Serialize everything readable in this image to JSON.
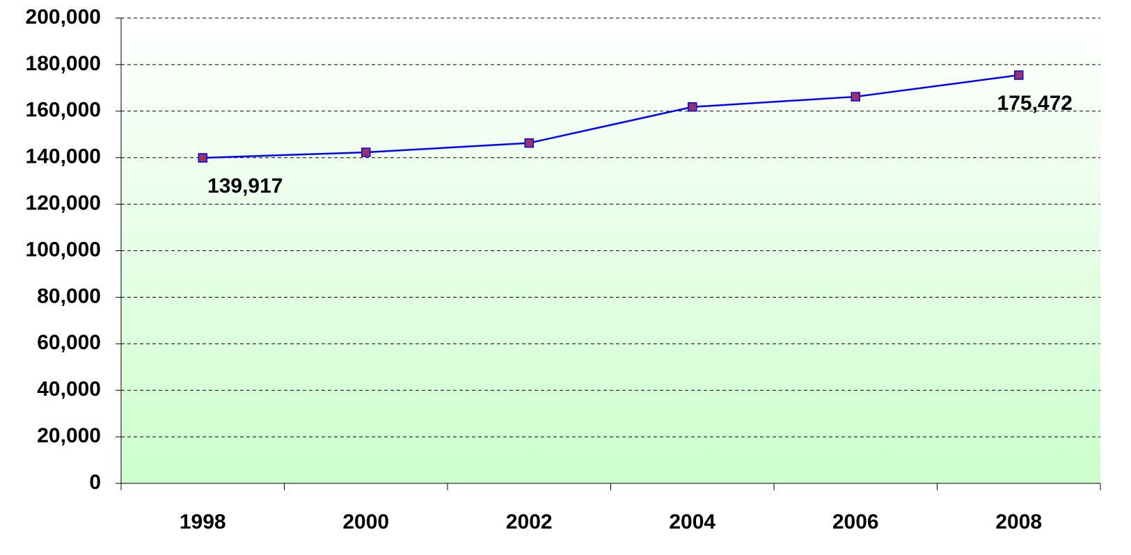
{
  "chart_data": {
    "type": "line",
    "categories": [
      "1998",
      "2000",
      "2002",
      "2004",
      "2006",
      "2008"
    ],
    "series": [
      {
        "name": null,
        "color": "#0000ff",
        "marker_color": "#993366",
        "values": [
          139917,
          142300,
          146300,
          161800,
          166200,
          175472
        ],
        "value_labels": [
          "139,917",
          null,
          null,
          null,
          null,
          "175,472"
        ]
      }
    ],
    "ylim": [
      0,
      200000
    ],
    "yticks": [
      0,
      {
        "value": 20000,
        "label": "20,000"
      },
      {
        "value": 40000,
        "label": "40,000"
      },
      {
        "value": 60000,
        "label": "60,000"
      },
      {
        "value": 80000,
        "label": "80,000"
      },
      {
        "value": 100000,
        "label": "100,000"
      },
      {
        "value": 120000,
        "label": "120,000"
      },
      {
        "value": 140000,
        "label": "140,000"
      },
      {
        "value": 160000,
        "label": "160,000"
      },
      {
        "value": 180000,
        "label": "180,000"
      },
      {
        "value": 200000,
        "label": "200,000"
      }
    ],
    "grid": true
  }
}
